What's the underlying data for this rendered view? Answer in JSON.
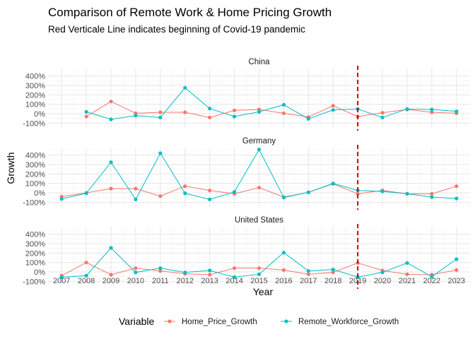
{
  "chart_data": {
    "type": "line",
    "title": "Comparison of Remote Work & Home Pricing Growth",
    "subtitle": "Red Verticale Line indicates beginning of Covid-19 pandemic",
    "xlabel": "Year",
    "ylabel": "Growth",
    "x": [
      2007,
      2008,
      2009,
      2010,
      2011,
      2012,
      2013,
      2014,
      2015,
      2016,
      2017,
      2018,
      2019,
      2020,
      2021,
      2022,
      2023
    ],
    "y_ticks": [
      "-100%",
      "0%",
      "100%",
      "200%",
      "300%",
      "400%"
    ],
    "ylim": [
      -150,
      480
    ],
    "vline_x": 2019,
    "vline_color": "#cc0000",
    "grid": true,
    "legend_title": "Variable",
    "legend_position": "bottom",
    "series_colors": {
      "Home_Price_Growth": "#f8766d",
      "Remote_Workforce_Growth": "#00bfc4"
    },
    "panels": [
      {
        "name": "China",
        "series": [
          {
            "name": "Home_Price_Growth",
            "values": [
              null,
              -30,
              130,
              5,
              15,
              15,
              -40,
              35,
              45,
              5,
              -35,
              85,
              -30,
              10,
              45,
              15,
              5
            ]
          },
          {
            "name": "Remote_Workforce_Growth",
            "values": [
              null,
              20,
              -60,
              -20,
              -40,
              275,
              55,
              -30,
              20,
              95,
              -55,
              40,
              50,
              -40,
              50,
              45,
              25
            ]
          }
        ]
      },
      {
        "name": "Germany",
        "series": [
          {
            "name": "Home_Price_Growth",
            "values": [
              -40,
              0,
              45,
              45,
              -35,
              70,
              25,
              -10,
              55,
              -45,
              5,
              95,
              -10,
              25,
              -10,
              -10,
              70
            ]
          },
          {
            "name": "Remote_Workforce_Growth",
            "values": [
              -65,
              -5,
              325,
              -70,
              420,
              -5,
              -70,
              10,
              460,
              -50,
              5,
              100,
              25,
              15,
              -10,
              -45,
              -60
            ]
          }
        ]
      },
      {
        "name": "United States",
        "series": [
          {
            "name": "Home_Price_Growth",
            "values": [
              -40,
              100,
              -30,
              40,
              10,
              -20,
              -30,
              40,
              40,
              20,
              -25,
              -5,
              95,
              15,
              -25,
              -30,
              20
            ]
          },
          {
            "name": "Remote_Workforce_Growth",
            "values": [
              -55,
              -40,
              255,
              -5,
              40,
              -5,
              15,
              -55,
              -25,
              205,
              10,
              25,
              -55,
              -5,
              95,
              -50,
              135
            ]
          }
        ]
      }
    ]
  }
}
